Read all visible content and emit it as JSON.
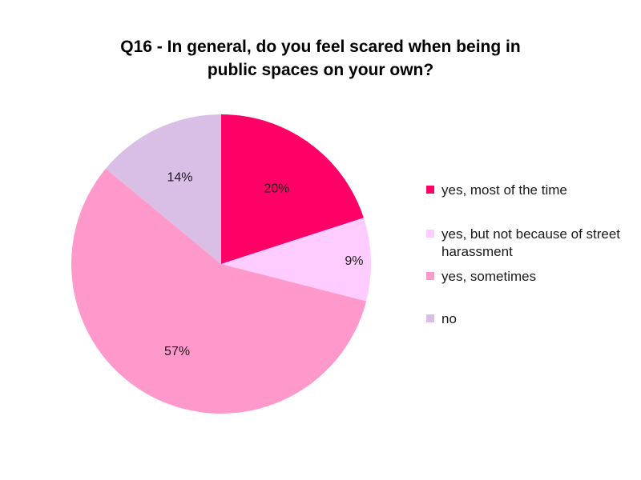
{
  "chart_data": {
    "type": "pie",
    "title_line1": "Q16 - In general, do you feel scared when being in",
    "title_line2": "public spaces on your own?",
    "slices": [
      {
        "label": "yes, most of the time",
        "value": 20,
        "display": "20%",
        "color": "#ff0066"
      },
      {
        "label": "yes, but not because of street harassment",
        "value": 9,
        "display": "9%",
        "color": "#ffccff"
      },
      {
        "label": "yes, sometimes",
        "value": 57,
        "display": "57%",
        "color": "#ff99cc"
      },
      {
        "label": "no",
        "value": 14,
        "display": "14%",
        "color": "#d9bfe6"
      }
    ],
    "start_angle": "12 o'clock",
    "direction": "clockwise",
    "legend_position": "right"
  }
}
